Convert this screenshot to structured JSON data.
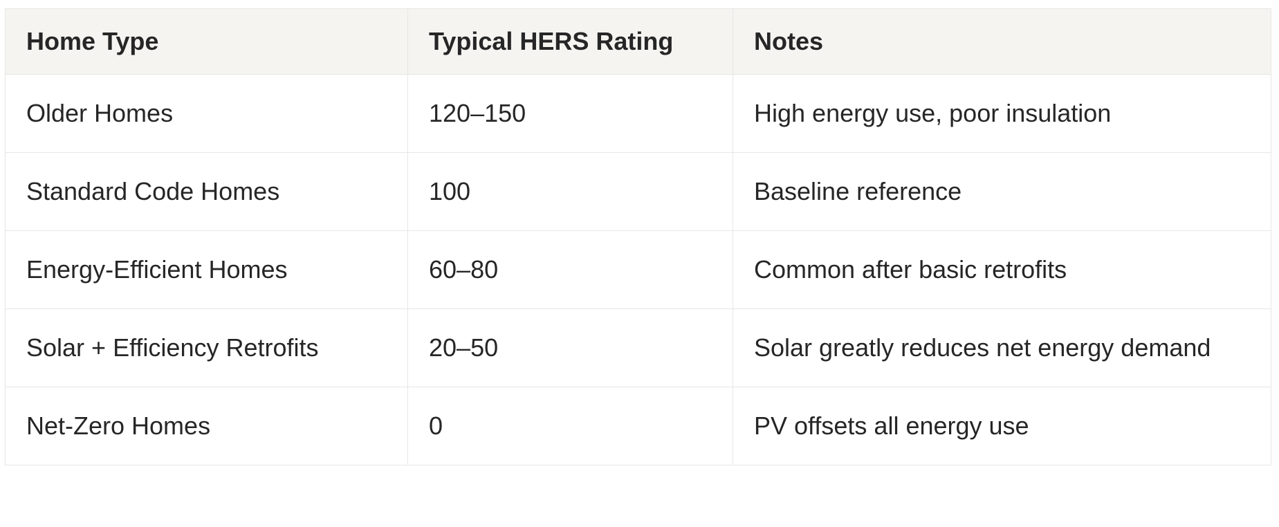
{
  "table": {
    "header": [
      "Home Type",
      "Typical HERS Rating",
      "Notes"
    ],
    "rows": [
      [
        "Older Homes",
        "120–150",
        "High energy use, poor insulation"
      ],
      [
        "Standard Code Homes",
        "100",
        "Baseline reference"
      ],
      [
        "Energy-Efficient Homes",
        "60–80",
        "Common after basic retrofits"
      ],
      [
        "Solar + Efficiency Retrofits",
        "20–50",
        "Solar greatly reduces net energy demand"
      ],
      [
        "Net-Zero Homes",
        "0",
        "PV offsets all energy use"
      ]
    ]
  }
}
